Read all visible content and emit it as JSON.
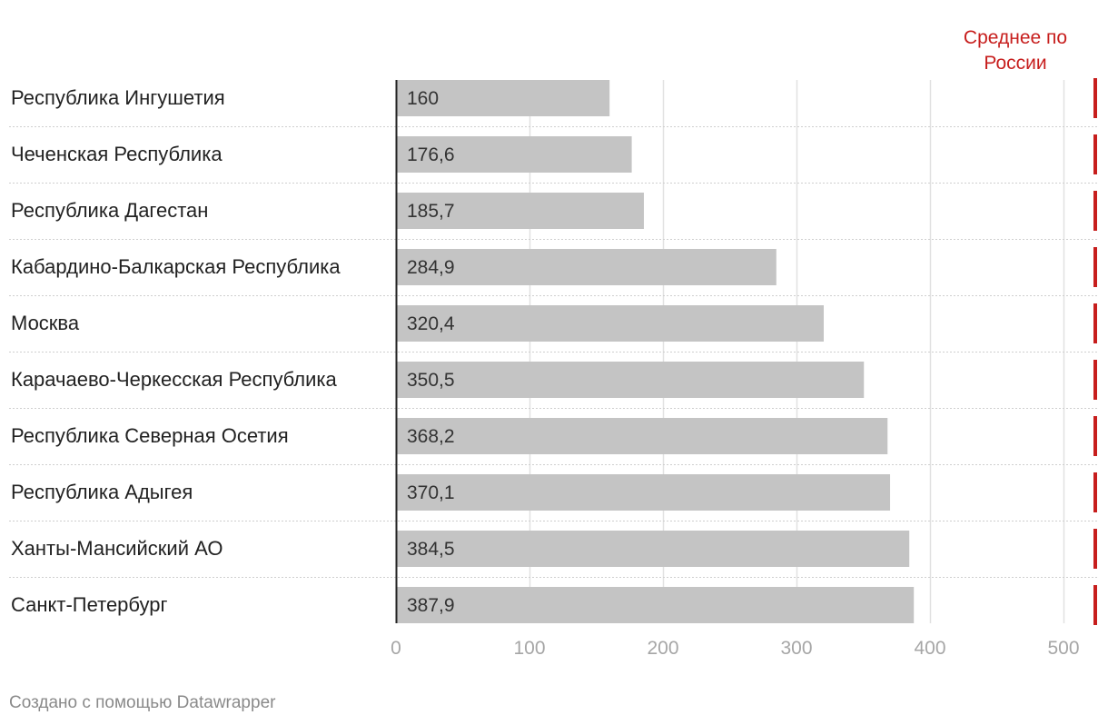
{
  "chart_data": {
    "type": "bar",
    "orientation": "horizontal",
    "categories": [
      "Республика Ингушетия",
      "Чеченская Республика",
      "Республика Дагестан",
      "Кабардино-Балкарская Республика",
      "Москва",
      "Карачаево-Черкесская Республика",
      "Республика Северная Осетия",
      "Республика Адыгея",
      "Ханты-Мансийский АО",
      "Санкт-Петербург"
    ],
    "values": [
      160,
      176.6,
      185.7,
      284.9,
      320.4,
      350.5,
      368.2,
      370.1,
      384.5,
      387.9
    ],
    "value_labels": [
      "160",
      "176,6",
      "185,7",
      "284,9",
      "320,4",
      "350,5",
      "368,2",
      "370,1",
      "384,5",
      "387,9"
    ],
    "xlim": [
      0,
      520
    ],
    "x_ticks": [
      0,
      100,
      200,
      300,
      400,
      500
    ],
    "x_tick_labels": [
      "0",
      "100",
      "200",
      "300",
      "400",
      "500"
    ],
    "grid": true,
    "reference_line": {
      "label": "Среднее по России",
      "label_lines": [
        "Среднее по",
        "России"
      ],
      "color": "#c71e1d"
    },
    "bar_color": "#c4c4c4",
    "label_color": "#222222",
    "axis_label_color": "#a6a6a6",
    "grid_color": "#e1e1e1",
    "separator_color": "#cfcfcf"
  },
  "footer": {
    "credit": "Создано с помощью Datawrapper"
  }
}
